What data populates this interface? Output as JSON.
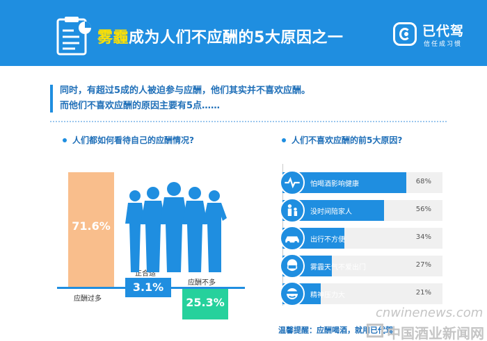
{
  "header": {
    "title_highlight": "雾霾",
    "title_rest": "成为人们不应酬的5大原因之一",
    "doc_icon": "clipboard-chart-icon"
  },
  "brand": {
    "name": "已代驾",
    "slogan": "信任成习惯",
    "logo_icon": "brand-c-logo-icon"
  },
  "intro": {
    "line1": "同时，有超过5成的人被迫参与应酬，他们其实并不喜欢应酬。",
    "line2": "而他们不喜欢应酬的原因主要有5点……"
  },
  "left_section": {
    "title": "人们都如何看待自己的应酬情况?",
    "items": [
      {
        "label": "应酬过多",
        "value": "71.6%"
      },
      {
        "label": "正合适",
        "value": "3.1%"
      },
      {
        "label": "应酬不多",
        "value": "25.3%"
      }
    ]
  },
  "right_section": {
    "title": "人们不喜欢应酬的前5大原因?",
    "items": [
      {
        "label": "怕喝酒影响健康",
        "value": "68%",
        "pct": 68,
        "icon": "heartbeat-icon"
      },
      {
        "label": "没时间陪家人",
        "value": "56%",
        "pct": 56,
        "icon": "family-icon"
      },
      {
        "label": "出行不方便",
        "value": "34%",
        "pct": 34,
        "icon": "car-icon"
      },
      {
        "label": "雾霾天气不爱出门",
        "value": "27%",
        "pct": 27,
        "icon": "mask-icon"
      },
      {
        "label": "精神压力大",
        "value": "21%",
        "pct": 21,
        "icon": "stress-icon"
      }
    ]
  },
  "footer": {
    "tip": "温馨提醒：应酬喝酒，就用已代驾"
  },
  "watermark": {
    "url": "cnwinenews.com",
    "name": "中国酒业新闻网"
  },
  "colors": {
    "primary": "#1f8ee0",
    "highlight": "#ffe100",
    "orange": "#f9be8c",
    "green": "#26d19c"
  }
}
